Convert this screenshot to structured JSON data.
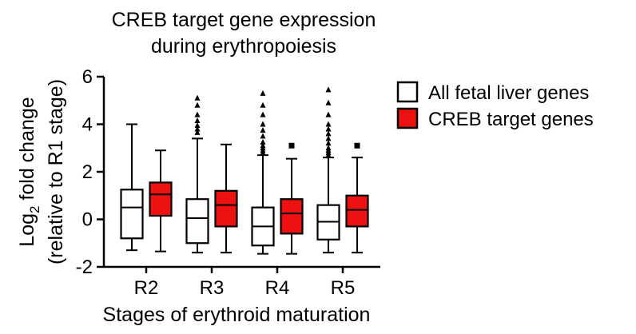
{
  "chart_data": {
    "type": "box",
    "title_lines": [
      "CREB target gene expression",
      "during erythropoiesis"
    ],
    "xlabel": "Stages of erythroid maturation",
    "ylabel": {
      "line1_prefix": "Log",
      "line1_subscript": "2",
      "line1_suffix": " fold change",
      "line2": "(relative to R1 stage)"
    },
    "ylim": [
      -2,
      6
    ],
    "yticks": [
      -2,
      0,
      2,
      4,
      6
    ],
    "ytick_labels": [
      "-2",
      "0",
      "2",
      "4",
      "6"
    ],
    "categories": [
      "R2",
      "R3",
      "R4",
      "R5"
    ],
    "legend_position": "right",
    "series": [
      {
        "name": "All fetal liver genes",
        "fill": "#ffffff",
        "stroke": "#000000",
        "outlier_marker": "triangle",
        "boxes": [
          {
            "whisker_low": -1.3,
            "q1": -0.8,
            "median": 0.5,
            "q3": 1.25,
            "whisker_high": 4.0,
            "outliers": []
          },
          {
            "whisker_low": -1.4,
            "q1": -1.0,
            "median": 0.05,
            "q3": 0.85,
            "whisker_high": 3.4,
            "outliers": [
              3.65,
              3.8,
              3.95,
              4.15,
              4.4,
              4.8,
              5.1
            ]
          },
          {
            "whisker_low": -1.45,
            "q1": -1.1,
            "median": -0.3,
            "q3": 0.5,
            "whisker_high": 2.7,
            "outliers": [
              2.8,
              2.9,
              3.0,
              3.1,
              3.25,
              3.5,
              3.75,
              4.0,
              4.4,
              4.8,
              5.3
            ]
          },
          {
            "whisker_low": -1.4,
            "q1": -0.85,
            "median": -0.1,
            "q3": 0.6,
            "whisker_high": 2.6,
            "outliers": [
              2.7,
              2.8,
              2.9,
              3.0,
              3.2,
              3.4,
              3.6,
              3.8,
              4.0,
              4.4,
              4.9,
              5.45
            ]
          }
        ]
      },
      {
        "name": "CREB target genes",
        "fill": "#ee1111",
        "stroke": "#000000",
        "outlier_marker": "square",
        "boxes": [
          {
            "whisker_low": -1.35,
            "q1": 0.15,
            "median": 1.05,
            "q3": 1.55,
            "whisker_high": 2.9,
            "outliers": []
          },
          {
            "whisker_low": -1.4,
            "q1": -0.3,
            "median": 0.6,
            "q3": 1.2,
            "whisker_high": 3.15,
            "outliers": []
          },
          {
            "whisker_low": -1.45,
            "q1": -0.6,
            "median": 0.25,
            "q3": 0.85,
            "whisker_high": 2.55,
            "outliers": [
              3.1
            ]
          },
          {
            "whisker_low": -1.4,
            "q1": -0.3,
            "median": 0.4,
            "q3": 1.0,
            "whisker_high": 2.6,
            "outliers": [
              3.1
            ]
          }
        ]
      }
    ]
  }
}
